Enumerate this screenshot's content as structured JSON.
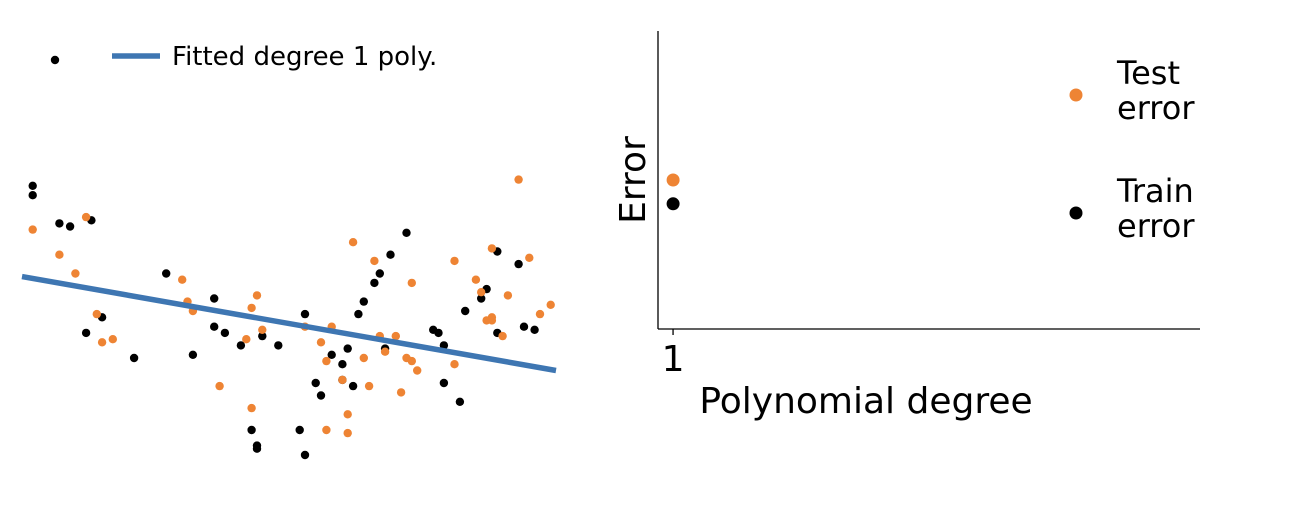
{
  "colors": {
    "train": "#000000",
    "test": "#ee8434",
    "fit_line": "#3e76b2",
    "axis": "#000000",
    "background": "#ffffff"
  },
  "chart_data": [
    {
      "type": "scatter",
      "title": "",
      "xlabel": "",
      "ylabel": "",
      "axes_visible": false,
      "grid": false,
      "xlim": [
        0,
        1
      ],
      "ylim": [
        0,
        1
      ],
      "legend": {
        "position": "top-left",
        "entries": [
          {
            "label": "",
            "marker": "dot",
            "color_key": "train"
          },
          {
            "label": "Fitted degree 1 poly.",
            "marker": "line",
            "color_key": "fit_line"
          }
        ]
      },
      "fit_line": {
        "degree": 1,
        "x": [
          0.0,
          1.0
        ],
        "y": [
          0.57,
          0.27
        ]
      },
      "series": [
        {
          "color_key": "train",
          "points": [
            [
              0.02,
              0.86
            ],
            [
              0.02,
              0.83
            ],
            [
              0.07,
              0.74
            ],
            [
              0.09,
              0.73
            ],
            [
              0.13,
              0.75
            ],
            [
              0.12,
              0.39
            ],
            [
              0.15,
              0.44
            ],
            [
              0.21,
              0.31
            ],
            [
              0.27,
              0.58
            ],
            [
              0.32,
              0.32
            ],
            [
              0.36,
              0.5
            ],
            [
              0.36,
              0.41
            ],
            [
              0.38,
              0.39
            ],
            [
              0.41,
              0.35
            ],
            [
              0.45,
              0.38
            ],
            [
              0.48,
              0.35
            ],
            [
              0.43,
              0.08
            ],
            [
              0.44,
              0.03
            ],
            [
              0.44,
              0.02
            ],
            [
              0.52,
              0.08
            ],
            [
              0.53,
              0.45
            ],
            [
              0.53,
              0.0
            ],
            [
              0.55,
              0.23
            ],
            [
              0.56,
              0.19
            ],
            [
              0.58,
              0.32
            ],
            [
              0.6,
              0.24
            ],
            [
              0.61,
              0.34
            ],
            [
              0.6,
              0.29
            ],
            [
              0.62,
              0.22
            ],
            [
              0.63,
              0.45
            ],
            [
              0.64,
              0.49
            ],
            [
              0.66,
              0.55
            ],
            [
              0.67,
              0.58
            ],
            [
              0.68,
              0.34
            ],
            [
              0.69,
              0.64
            ],
            [
              0.72,
              0.71
            ],
            [
              0.77,
              0.4
            ],
            [
              0.78,
              0.39
            ],
            [
              0.79,
              0.23
            ],
            [
              0.82,
              0.17
            ],
            [
              0.83,
              0.46
            ],
            [
              0.86,
              0.5
            ],
            [
              0.87,
              0.53
            ],
            [
              0.89,
              0.65
            ],
            [
              0.89,
              0.39
            ],
            [
              0.93,
              0.61
            ],
            [
              0.94,
              0.41
            ],
            [
              0.96,
              0.4
            ],
            [
              0.79,
              0.35
            ]
          ]
        },
        {
          "color_key": "test",
          "points": [
            [
              0.02,
              0.72
            ],
            [
              0.07,
              0.64
            ],
            [
              0.1,
              0.58
            ],
            [
              0.12,
              0.76
            ],
            [
              0.14,
              0.45
            ],
            [
              0.15,
              0.36
            ],
            [
              0.17,
              0.37
            ],
            [
              0.3,
              0.56
            ],
            [
              0.31,
              0.49
            ],
            [
              0.32,
              0.46
            ],
            [
              0.37,
              0.22
            ],
            [
              0.42,
              0.37
            ],
            [
              0.43,
              0.47
            ],
            [
              0.43,
              0.15
            ],
            [
              0.44,
              0.51
            ],
            [
              0.45,
              0.4
            ],
            [
              0.53,
              0.41
            ],
            [
              0.56,
              0.36
            ],
            [
              0.57,
              0.3
            ],
            [
              0.58,
              0.41
            ],
            [
              0.6,
              0.24
            ],
            [
              0.61,
              0.13
            ],
            [
              0.62,
              0.68
            ],
            [
              0.61,
              0.07
            ],
            [
              0.57,
              0.08
            ],
            [
              0.64,
              0.31
            ],
            [
              0.65,
              0.22
            ],
            [
              0.66,
              0.62
            ],
            [
              0.67,
              0.38
            ],
            [
              0.68,
              0.33
            ],
            [
              0.7,
              0.38
            ],
            [
              0.71,
              0.2
            ],
            [
              0.72,
              0.31
            ],
            [
              0.73,
              0.55
            ],
            [
              0.74,
              0.27
            ],
            [
              0.73,
              0.3
            ],
            [
              0.81,
              0.29
            ],
            [
              0.81,
              0.62
            ],
            [
              0.85,
              0.56
            ],
            [
              0.86,
              0.52
            ],
            [
              0.88,
              0.66
            ],
            [
              0.87,
              0.43
            ],
            [
              0.88,
              0.44
            ],
            [
              0.88,
              0.43
            ],
            [
              0.9,
              0.38
            ],
            [
              0.91,
              0.51
            ],
            [
              0.93,
              0.88
            ],
            [
              0.95,
              0.63
            ],
            [
              0.97,
              0.45
            ],
            [
              0.99,
              0.48
            ]
          ]
        }
      ]
    },
    {
      "type": "scatter",
      "title": "",
      "xlabel": "Polynomial degree",
      "ylabel": "Error",
      "grid": false,
      "x_ticks": [
        1
      ],
      "x_tick_labels": [
        "1"
      ],
      "y_ticks": [],
      "xlim": [
        0.92,
        3.8
      ],
      "ylim": [
        0,
        1
      ],
      "legend": {
        "position": "top-right",
        "entries": [
          {
            "label_lines": [
              "Test",
              "error"
            ],
            "color_key": "test"
          },
          {
            "label_lines": [
              "Train",
              "error"
            ],
            "color_key": "train"
          }
        ]
      },
      "series": [
        {
          "name": "Test error",
          "color_key": "test",
          "x": [
            1
          ],
          "y": [
            0.5
          ]
        },
        {
          "name": "Train error",
          "color_key": "train",
          "x": [
            1
          ],
          "y": [
            0.42
          ]
        }
      ]
    }
  ]
}
